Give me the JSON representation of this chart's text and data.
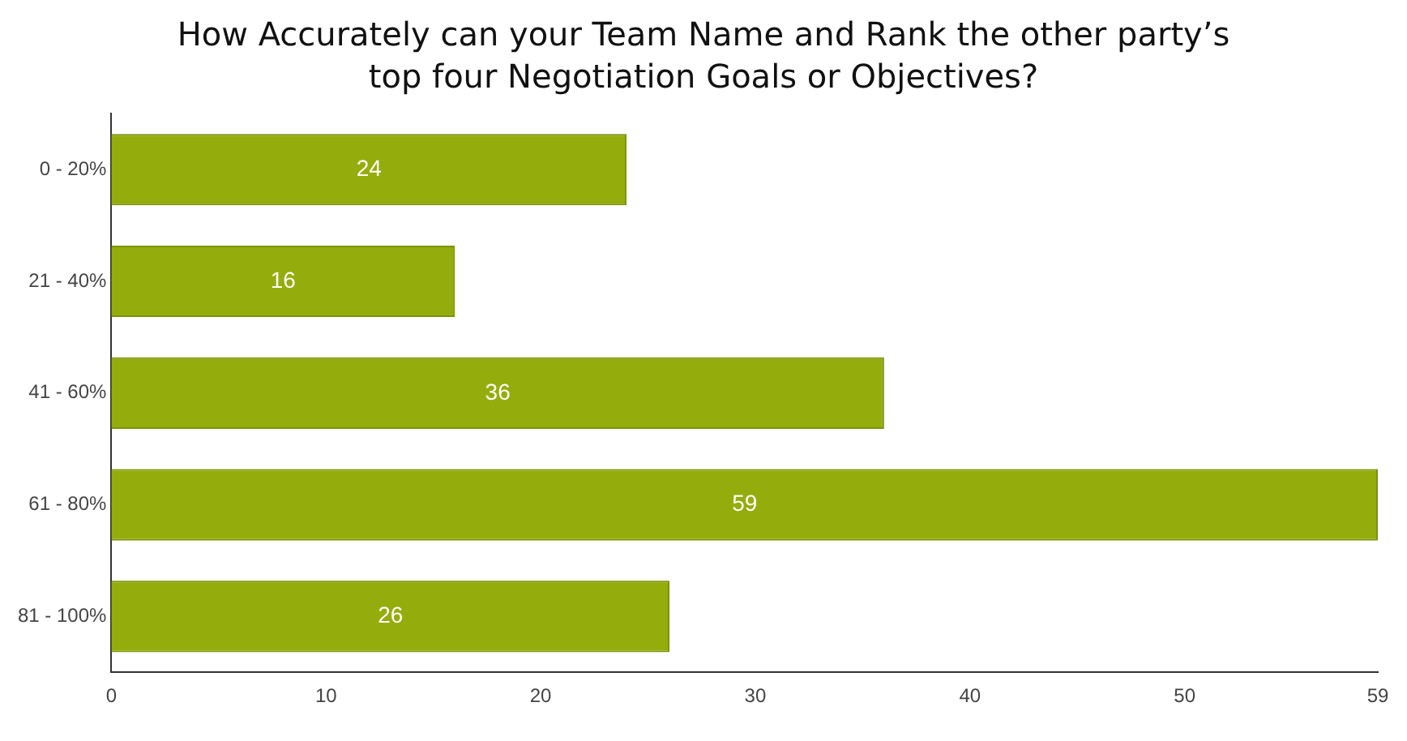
{
  "chart_data": {
    "type": "bar",
    "orientation": "horizontal",
    "title": "How Accurately can your Team Name and Rank the other party’s top four Negotiation Goals or Objectives?",
    "categories": [
      "0 - 20%",
      "21 - 40%",
      "41 - 60%",
      "61 - 80%",
      "81 - 100%"
    ],
    "values": [
      24,
      16,
      36,
      59,
      26
    ],
    "color": "#94ad0c",
    "xlim": [
      0,
      59
    ],
    "xticks": [
      0,
      10,
      20,
      30,
      40,
      50,
      59
    ],
    "grid": false,
    "legend": false,
    "data_labels": true
  }
}
